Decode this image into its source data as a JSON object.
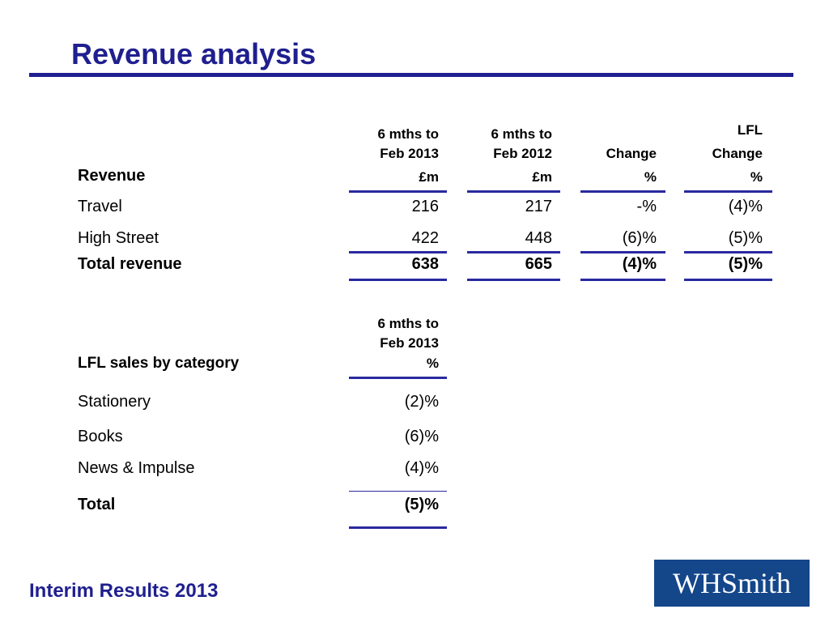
{
  "page": {
    "title": "Revenue analysis",
    "footer": "Interim Results 2013",
    "logo": "WHSmith"
  },
  "revenue_table": {
    "row_header": "Revenue",
    "columns": [
      {
        "line1": "6 mths to",
        "line2": "Feb 2013",
        "unit": "£m"
      },
      {
        "line1": "6 mths to",
        "line2": "Feb 2012",
        "unit": "£m"
      },
      {
        "line1": "",
        "line2": "Change",
        "unit": "%"
      },
      {
        "line1": "LFL",
        "line2": "Change",
        "unit": "%"
      }
    ],
    "rows": [
      {
        "label": "Travel",
        "values": [
          "216",
          "217",
          "-%",
          "(4)%"
        ]
      },
      {
        "label": "High Street",
        "values": [
          "422",
          "448",
          "(6)%",
          "(5)%"
        ]
      },
      {
        "label": "Total revenue",
        "values": [
          "638",
          "665",
          "(4)%",
          "(5)%"
        ]
      }
    ]
  },
  "lfl_table": {
    "row_header": "LFL sales by category",
    "column": {
      "line1": "6 mths to",
      "line2": "Feb 2013",
      "unit": "%"
    },
    "rows": [
      {
        "label": "Stationery",
        "value": "(2)%"
      },
      {
        "label": "Books",
        "value": "(6)%"
      },
      {
        "label": "News & Impulse",
        "value": "(4)%"
      },
      {
        "label": "Total",
        "value": "(5)%"
      }
    ]
  }
}
